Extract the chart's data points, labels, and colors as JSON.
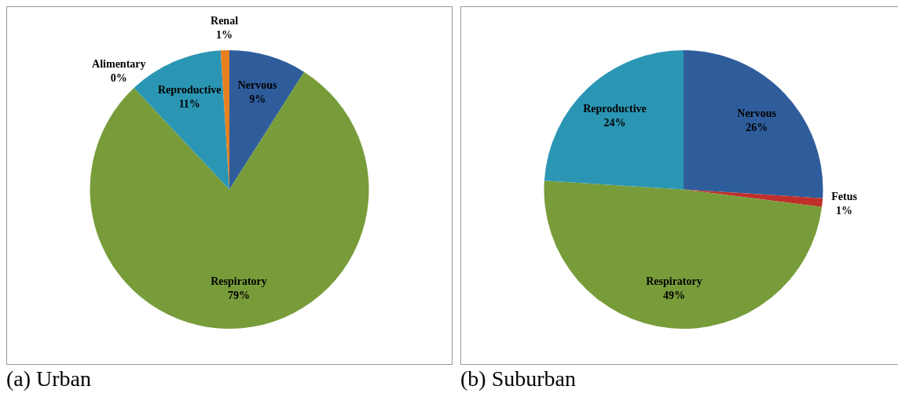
{
  "chart_data": [
    {
      "type": "pie",
      "title": "(a) Urban",
      "categories": [
        "Nervous",
        "Respiratory",
        "Alimentary",
        "Reproductive",
        "Renal"
      ],
      "values": [
        9,
        79,
        0,
        11,
        1
      ],
      "value_labels": [
        "9%",
        "79%",
        "0%",
        "11%",
        "1%"
      ],
      "colors": [
        "#2f5d9c",
        "#789c3a",
        "#8064a2",
        "#2b96b4",
        "#e8801f"
      ]
    },
    {
      "type": "pie",
      "title": "(b) Suburban",
      "categories": [
        "Nervous",
        "Fetus",
        "Respiratory",
        "Reproductive"
      ],
      "values": [
        26,
        1,
        49,
        24
      ],
      "value_labels": [
        "26%",
        "1%",
        "49%",
        "24%"
      ],
      "colors": [
        "#2f5d9c",
        "#c0302b",
        "#789c3a",
        "#2b96b4"
      ]
    }
  ]
}
